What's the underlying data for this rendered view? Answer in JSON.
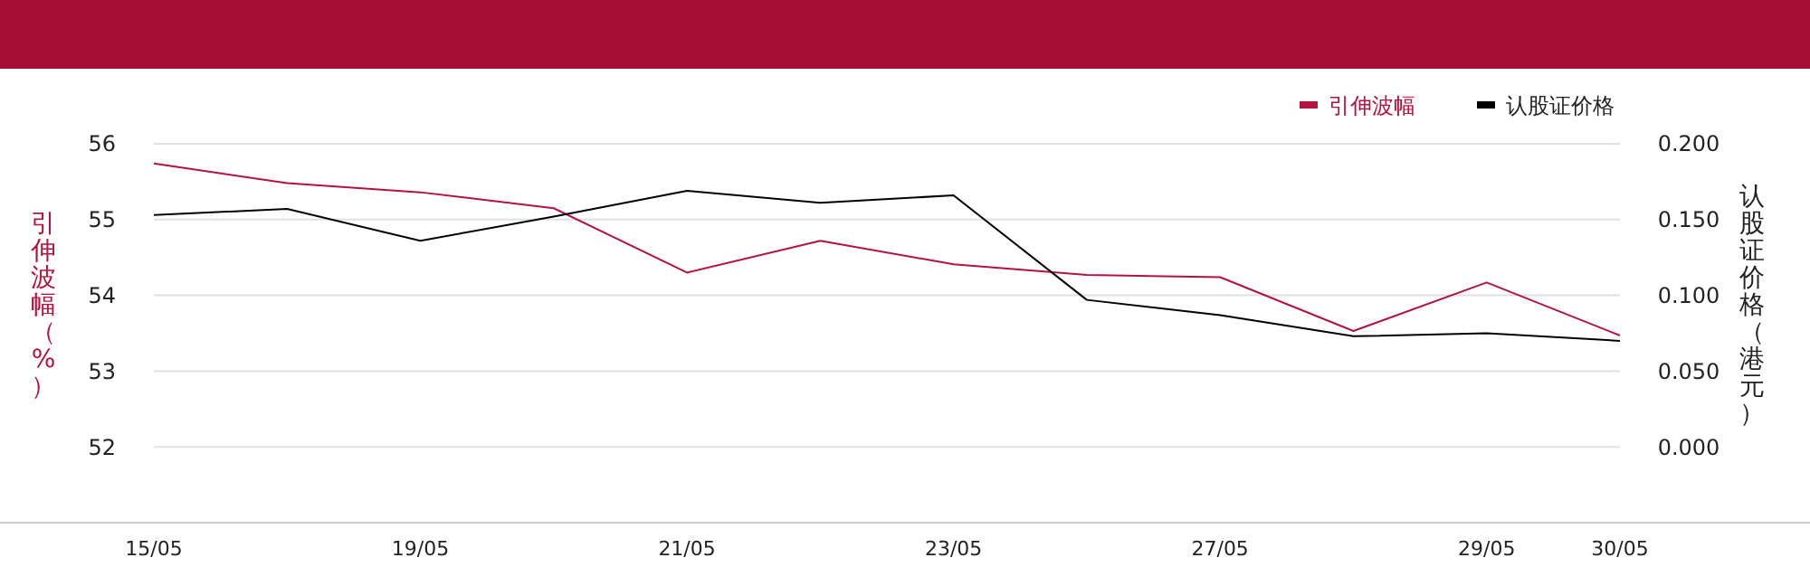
{
  "chart_data": {
    "type": "line",
    "categories": [
      "15/05",
      null,
      "19/05",
      null,
      "21/05",
      null,
      "23/05",
      null,
      "27/05",
      null,
      "29/05",
      "30/05"
    ],
    "series": [
      {
        "name": "引伸波幅",
        "color": "#b5133f",
        "values": [
          55.74,
          55.48,
          55.36,
          55.15,
          54.3,
          54.72,
          54.41,
          54.27,
          54.24,
          53.53,
          54.17,
          53.47
        ]
      },
      {
        "name": "认股证价格",
        "color": "#000000",
        "axis": "y2",
        "values": [
          0.153,
          0.157,
          0.136,
          0.152,
          0.169,
          0.161,
          0.166,
          0.097,
          0.087,
          0.073,
          0.075,
          0.07
        ]
      }
    ],
    "ylabel": "引伸波幅（%）",
    "y2label": "认股证价格（港元）",
    "ylim": [
      51,
      56
    ],
    "yticks": [
      52,
      53,
      54,
      55,
      56
    ],
    "y2lim": [
      -0.05,
      0.2
    ],
    "y2ticks": [
      {
        "value": 0,
        "label": "0.000"
      },
      {
        "value": 0.05,
        "label": "0.050"
      },
      {
        "value": 0.1,
        "label": "0.100"
      },
      {
        "value": 0.15,
        "label": "0.150"
      },
      {
        "value": 0.2,
        "label": "0.200"
      }
    ],
    "grid": "y",
    "legend": "top right",
    "marker": "none",
    "line_style": "solid"
  }
}
